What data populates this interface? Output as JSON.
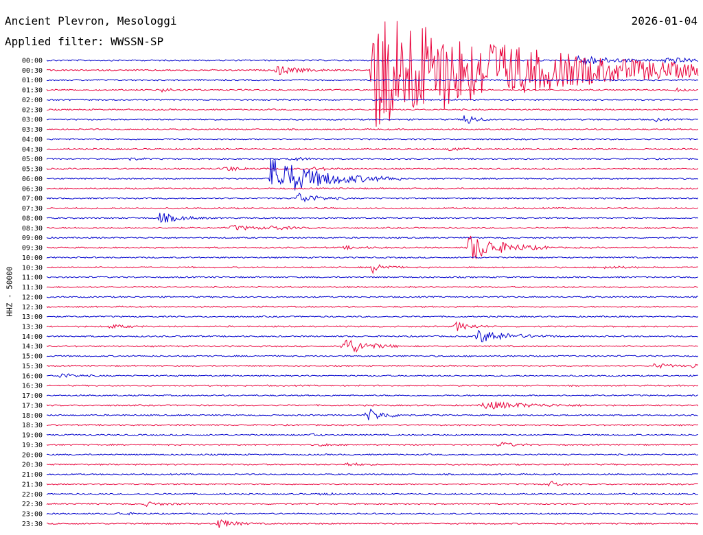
{
  "header": {
    "station": "Ancient Plevron, Mesologgi",
    "filter": "Applied filter: WWSSN-SP",
    "date": "2026-01-04"
  },
  "chart_data": {
    "type": "line",
    "title": "Ancient Plevron, Mesologgi",
    "subtitle": "Applied filter: WWSSN-SP",
    "ylabel": "HHZ - 50000",
    "grid": false,
    "row_labels": [
      "00:00",
      "00:30",
      "01:00",
      "01:30",
      "02:00",
      "02:30",
      "03:00",
      "03:30",
      "04:00",
      "04:30",
      "05:00",
      "05:30",
      "06:00",
      "06:30",
      "07:00",
      "07:30",
      "08:00",
      "08:30",
      "09:00",
      "09:30",
      "10:00",
      "10:30",
      "11:00",
      "11:30",
      "12:00",
      "12:30",
      "13:00",
      "13:30",
      "14:00",
      "14:30",
      "15:00",
      "15:30",
      "16:00",
      "16:30",
      "17:00",
      "17:30",
      "18:00",
      "18:30",
      "19:00",
      "19:30",
      "20:00",
      "20:30",
      "21:00",
      "21:30",
      "22:00",
      "22:30",
      "23:00",
      "23:30"
    ],
    "colors": [
      "#0000cc",
      "#e8003a"
    ],
    "minutes_per_row": 30,
    "events": [
      {
        "row": 0,
        "minute": 24.5,
        "amp": 8,
        "dur": 1.3
      },
      {
        "row": 0,
        "minute": 28.5,
        "amp": 6,
        "dur": 0.9
      },
      {
        "row": 1,
        "minute": 10.5,
        "amp": 7,
        "dur": 1.0
      },
      {
        "row": 1,
        "minute": 14.9,
        "amp": 95,
        "dur": 6.5
      },
      {
        "row": 1,
        "minute": 20.4,
        "amp": 5,
        "dur": 0.8
      },
      {
        "row": 3,
        "minute": 5.3,
        "amp": 3,
        "dur": 0.6
      },
      {
        "row": 3,
        "minute": 28.9,
        "amp": 2.5,
        "dur": 0.5
      },
      {
        "row": 6,
        "minute": 19.2,
        "amp": 11,
        "dur": 0.4
      },
      {
        "row": 6,
        "minute": 28.0,
        "amp": 3,
        "dur": 0.3
      },
      {
        "row": 9,
        "minute": 18.5,
        "amp": 3,
        "dur": 0.5
      },
      {
        "row": 10,
        "minute": 3.6,
        "amp": 3,
        "dur": 0.4
      },
      {
        "row": 10,
        "minute": 11.2,
        "amp": 3,
        "dur": 0.6
      },
      {
        "row": 11,
        "minute": 8.1,
        "amp": 4,
        "dur": 0.8
      },
      {
        "row": 11,
        "minute": 12.3,
        "amp": 2,
        "dur": 0.8
      },
      {
        "row": 12,
        "minute": 10.3,
        "amp": 32,
        "dur": 2.0
      },
      {
        "row": 14,
        "minute": 11.5,
        "amp": 9,
        "dur": 0.8
      },
      {
        "row": 16,
        "minute": 5.2,
        "amp": 8,
        "dur": 0.8
      },
      {
        "row": 17,
        "minute": 8.5,
        "amp": 4,
        "dur": 0.9
      },
      {
        "row": 17,
        "minute": 10.2,
        "amp": 3,
        "dur": 0.8
      },
      {
        "row": 19,
        "minute": 13.7,
        "amp": 2,
        "dur": 0.8
      },
      {
        "row": 19,
        "minute": 19.4,
        "amp": 22,
        "dur": 1.3
      },
      {
        "row": 21,
        "minute": 15.0,
        "amp": 8,
        "dur": 0.5
      },
      {
        "row": 21,
        "minute": 25.7,
        "amp": 2,
        "dur": 0.8
      },
      {
        "row": 27,
        "minute": 2.9,
        "amp": 3,
        "dur": 0.6
      },
      {
        "row": 27,
        "minute": 18.8,
        "amp": 7,
        "dur": 0.6
      },
      {
        "row": 28,
        "minute": 19.8,
        "amp": 10,
        "dur": 1.3
      },
      {
        "row": 29,
        "minute": 13.6,
        "amp": 15,
        "dur": 0.9
      },
      {
        "row": 31,
        "minute": 28.0,
        "amp": 4,
        "dur": 0.6
      },
      {
        "row": 31,
        "minute": 29.7,
        "amp": 3,
        "dur": 0.4
      },
      {
        "row": 32,
        "minute": 0.6,
        "amp": 4,
        "dur": 0.6
      },
      {
        "row": 35,
        "minute": 20.1,
        "amp": 6,
        "dur": 1.8
      },
      {
        "row": 36,
        "minute": 14.7,
        "amp": 11,
        "dur": 0.7
      },
      {
        "row": 38,
        "minute": 12.2,
        "amp": 2,
        "dur": 0.3
      },
      {
        "row": 39,
        "minute": 12.6,
        "amp": 3,
        "dur": 0.3
      },
      {
        "row": 39,
        "minute": 20.8,
        "amp": 4,
        "dur": 0.6
      },
      {
        "row": 41,
        "minute": 13.8,
        "amp": 3,
        "dur": 0.5
      },
      {
        "row": 43,
        "minute": 23.1,
        "amp": 8,
        "dur": 0.3
      },
      {
        "row": 44,
        "minute": 12.6,
        "amp": 3,
        "dur": 0.3
      },
      {
        "row": 45,
        "minute": 4.5,
        "amp": 3,
        "dur": 0.8
      },
      {
        "row": 46,
        "minute": 3.3,
        "amp": 2,
        "dur": 0.5
      },
      {
        "row": 47,
        "minute": 7.9,
        "amp": 7,
        "dur": 0.6
      }
    ]
  }
}
